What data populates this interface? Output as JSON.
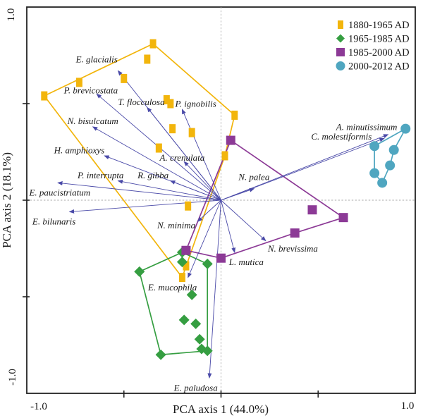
{
  "chart_data": {
    "type": "scatter",
    "title": "",
    "xlabel": "PCA axis 1 (44.0%)",
    "ylabel": "PCA axis 2 (18.1%)",
    "xlim": [
      -1.0,
      1.0
    ],
    "ylim": [
      -1.0,
      1.0
    ],
    "tick_labels": {
      "x_min": "-1.0",
      "x_max": "1.0",
      "y_max": "1.0",
      "y_min": "-1.0"
    },
    "inner_ticks": [
      -0.5,
      0,
      0.5
    ],
    "grid": "dashed crosshair at origin",
    "legend_position": "top-right",
    "crosshair_color": "#aaaaaa",
    "frame_color": "#222222",
    "vector_color": "#4a4aa8",
    "groups": [
      {
        "name": "1880-1965 AD",
        "color": "#f2b50c",
        "marker": "rect",
        "points": [
          [
            -0.35,
            0.81
          ],
          [
            -0.38,
            0.73
          ],
          [
            -0.5,
            0.63
          ],
          [
            -0.73,
            0.61
          ],
          [
            -0.91,
            0.54
          ],
          [
            -0.28,
            0.52
          ],
          [
            -0.26,
            0.5
          ],
          [
            -0.25,
            0.37
          ],
          [
            -0.15,
            0.35
          ],
          [
            -0.32,
            0.27
          ],
          [
            0.07,
            0.44
          ],
          [
            0.02,
            0.23
          ],
          [
            -0.17,
            -0.03
          ],
          [
            -0.18,
            -0.34
          ],
          [
            -0.2,
            -0.4
          ]
        ],
        "hull": [
          [
            -0.35,
            0.81
          ],
          [
            0.07,
            0.44
          ],
          [
            0.02,
            0.23
          ],
          [
            -0.2,
            -0.4
          ],
          [
            -0.91,
            0.54
          ]
        ]
      },
      {
        "name": "1965-1985 AD",
        "color": "#359e41",
        "marker": "diamond",
        "points": [
          [
            -0.42,
            -0.37
          ],
          [
            -0.2,
            -0.27
          ],
          [
            -0.2,
            -0.32
          ],
          [
            -0.07,
            -0.33
          ],
          [
            -0.15,
            -0.49
          ],
          [
            -0.19,
            -0.62
          ],
          [
            -0.13,
            -0.64
          ],
          [
            -0.11,
            -0.72
          ],
          [
            -0.1,
            -0.77
          ],
          [
            -0.07,
            -0.78
          ],
          [
            -0.31,
            -0.8
          ]
        ],
        "hull": [
          [
            -0.42,
            -0.37
          ],
          [
            -0.2,
            -0.27
          ],
          [
            -0.07,
            -0.33
          ],
          [
            -0.07,
            -0.78
          ],
          [
            -0.31,
            -0.8
          ]
        ]
      },
      {
        "name": "1985-2000 AD",
        "color": "#8c3a96",
        "marker": "square",
        "points": [
          [
            0.05,
            0.31
          ],
          [
            0.47,
            -0.05
          ],
          [
            0.63,
            -0.09
          ],
          [
            0.38,
            -0.17
          ],
          [
            0.0,
            -0.3
          ],
          [
            -0.18,
            -0.26
          ]
        ],
        "hull": [
          [
            0.05,
            0.31
          ],
          [
            0.63,
            -0.09
          ],
          [
            0.38,
            -0.17
          ],
          [
            0.0,
            -0.3
          ],
          [
            -0.18,
            -0.26
          ]
        ]
      },
      {
        "name": "2000-2012 AD",
        "color": "#4fa6c0",
        "marker": "circle",
        "points": [
          [
            0.95,
            0.37
          ],
          [
            0.89,
            0.26
          ],
          [
            0.87,
            0.18
          ],
          [
            0.83,
            0.09
          ],
          [
            0.79,
            0.14
          ],
          [
            0.79,
            0.28
          ]
        ],
        "hull": [
          [
            0.95,
            0.37
          ],
          [
            0.89,
            0.26
          ],
          [
            0.87,
            0.18
          ],
          [
            0.83,
            0.09
          ],
          [
            0.79,
            0.14
          ],
          [
            0.79,
            0.28
          ]
        ]
      }
    ],
    "vectors": [
      {
        "name": "E. glacialis",
        "x": -0.53,
        "y": 0.67,
        "lx": -0.64,
        "ly": 0.73
      },
      {
        "name": "P. brevicostata",
        "x": -0.64,
        "y": 0.55,
        "lx": -0.67,
        "ly": 0.57
      },
      {
        "name": "T. flocculosa",
        "x": -0.38,
        "y": 0.48,
        "lx": -0.41,
        "ly": 0.51
      },
      {
        "name": "P. ignobilis",
        "x": -0.2,
        "y": 0.47,
        "lx": -0.13,
        "ly": 0.5
      },
      {
        "name": "N. bisulcatum",
        "x": -0.66,
        "y": 0.38,
        "lx": -0.66,
        "ly": 0.41
      },
      {
        "name": "H. amphioxys",
        "x": -0.6,
        "y": 0.23,
        "lx": -0.73,
        "ly": 0.26
      },
      {
        "name": "A. crenulata",
        "x": -0.19,
        "y": 0.2,
        "lx": -0.2,
        "ly": 0.22
      },
      {
        "name": "R. gibba",
        "x": -0.26,
        "y": 0.1,
        "lx": -0.35,
        "ly": 0.13
      },
      {
        "name": "P. interrupta",
        "x": -0.53,
        "y": 0.1,
        "lx": -0.62,
        "ly": 0.13
      },
      {
        "name": "E. paucistriatum",
        "x": -0.84,
        "y": 0.09,
        "lx": -0.83,
        "ly": 0.04
      },
      {
        "name": "E. bilunaris",
        "x": -0.78,
        "y": -0.06,
        "lx": -0.86,
        "ly": -0.11
      },
      {
        "name": "N. minima",
        "x": -0.12,
        "y": -0.11,
        "lx": -0.23,
        "ly": -0.13
      },
      {
        "name": "E. mucophila",
        "x": -0.17,
        "y": -0.4,
        "lx": -0.25,
        "ly": -0.45
      },
      {
        "name": "E. paludosa",
        "x": -0.06,
        "y": -0.92,
        "lx": -0.13,
        "ly": -0.97
      },
      {
        "name": "L. mutica",
        "x": 0.07,
        "y": -0.27,
        "lx": 0.13,
        "ly": -0.32
      },
      {
        "name": "N. brevissima",
        "x": 0.23,
        "y": -0.21,
        "lx": 0.37,
        "ly": -0.25
      },
      {
        "name": "N. palea",
        "x": 0.17,
        "y": 0.06,
        "lx": 0.17,
        "ly": 0.12
      },
      {
        "name": "C. molestiformis",
        "x": 0.84,
        "y": 0.32,
        "lx": 0.62,
        "ly": 0.33
      },
      {
        "name": "A. minutissimum",
        "x": 0.86,
        "y": 0.34,
        "lx": 0.75,
        "ly": 0.38
      }
    ]
  }
}
